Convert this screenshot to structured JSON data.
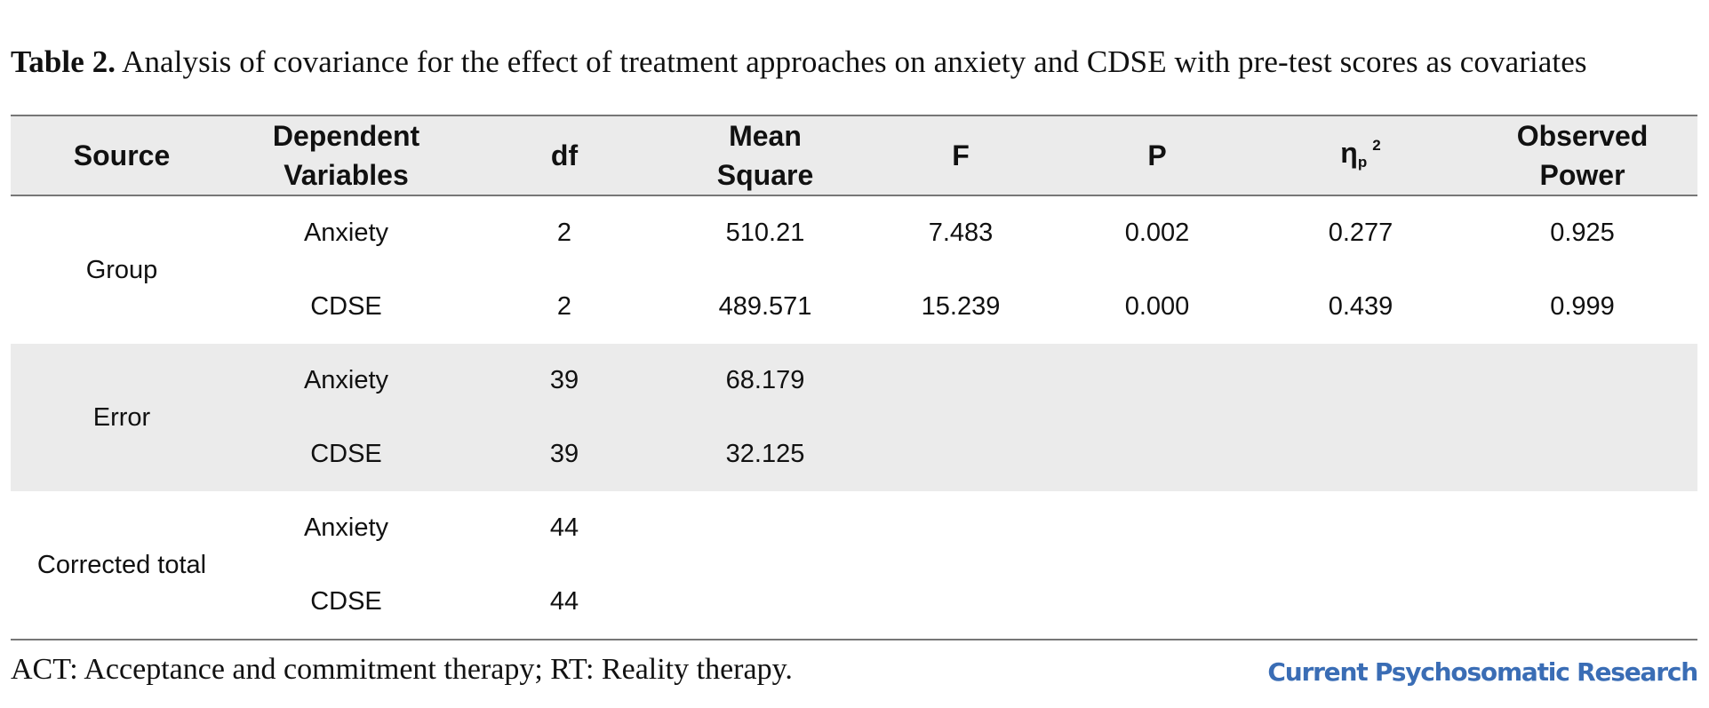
{
  "caption": {
    "label": "Table 2.",
    "text": "Analysis of covariance for the effect of treatment approaches on anxiety and CDSE with pre-test scores as covariates"
  },
  "table": {
    "headers": {
      "source": "Source",
      "dependent_line1": "Dependent",
      "dependent_line2": "Variables",
      "df": "df",
      "mean_square_line1": "Mean",
      "mean_square_line2": "Square",
      "f": "F",
      "p": "P",
      "eta_symbol": "η",
      "eta_sub": "p",
      "eta_sup": "2",
      "power_line1": "Observed",
      "power_line2": "Power"
    },
    "groups": [
      {
        "source": "Group",
        "rows": [
          {
            "dv": "Anxiety",
            "df": "2",
            "ms": "510.21",
            "f": "7.483",
            "p": "0.002",
            "eta": "0.277",
            "power": "0.925"
          },
          {
            "dv": "CDSE",
            "df": "2",
            "ms": "489.571",
            "f": "15.239",
            "p": "0.000",
            "eta": "0.439",
            "power": "0.999"
          }
        ]
      },
      {
        "source": "Error",
        "rows": [
          {
            "dv": "Anxiety",
            "df": "39",
            "ms": "68.179",
            "f": "",
            "p": "",
            "eta": "",
            "power": ""
          },
          {
            "dv": "CDSE",
            "df": "39",
            "ms": "32.125",
            "f": "",
            "p": "",
            "eta": "",
            "power": ""
          }
        ]
      },
      {
        "source": "Corrected total",
        "rows": [
          {
            "dv": "Anxiety",
            "df": "44",
            "ms": "",
            "f": "",
            "p": "",
            "eta": "",
            "power": ""
          },
          {
            "dv": "CDSE",
            "df": "44",
            "ms": "",
            "f": "",
            "p": "",
            "eta": "",
            "power": ""
          }
        ]
      }
    ]
  },
  "footnote": "ACT: Acceptance and commitment therapy; RT: Reality therapy.",
  "brand": "Current Psychosomatic Research",
  "colors": {
    "header_shade": "#ebebeb",
    "rule": "#777777",
    "brand": "#3a6db5"
  }
}
